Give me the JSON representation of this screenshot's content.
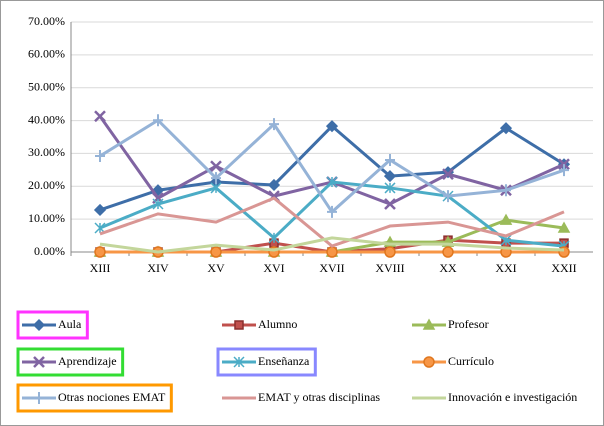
{
  "chart_data": {
    "type": "line",
    "categories": [
      "XIII",
      "XIV",
      "XV",
      "XVI",
      "XVII",
      "XVIII",
      "XX",
      "XXI",
      "XXII"
    ],
    "ylim": [
      0,
      70
    ],
    "yticks": [
      {
        "value": 0,
        "label": "0.00%"
      },
      {
        "value": 10,
        "label": "10.00%"
      },
      {
        "value": 20,
        "label": "20.00%"
      },
      {
        "value": 30,
        "label": "30.00%"
      },
      {
        "value": 40,
        "label": "40.00%"
      },
      {
        "value": 50,
        "label": "50.00%"
      },
      {
        "value": 60,
        "label": "60.00%"
      },
      {
        "value": 70,
        "label": "70.00%"
      }
    ],
    "grid": true,
    "legend": "bottom",
    "series": [
      {
        "name": "Aula",
        "color": "#3e6ea8",
        "marker": "diamond",
        "highlight": "#ff33ff",
        "values": [
          12.8,
          18.8,
          21.3,
          20.4,
          38.3,
          23.1,
          24.3,
          37.7,
          26.7
        ]
      },
      {
        "name": "Alumno",
        "color": "#c0504d",
        "marker": "square",
        "values": [
          0,
          0,
          0,
          2.7,
          0,
          1,
          3.6,
          2.7,
          2.7
        ]
      },
      {
        "name": "Profesor",
        "color": "#9bbb59",
        "marker": "triangle",
        "values": [
          0,
          0,
          0,
          0,
          0,
          3,
          3,
          9.7,
          7.3
        ]
      },
      {
        "name": "Aprendizaje",
        "color": "#8064a2",
        "marker": "x",
        "highlight": "#33dd33",
        "values": [
          41.3,
          16.4,
          26.1,
          17,
          21.3,
          14.6,
          23.7,
          18.8,
          26.7
        ]
      },
      {
        "name": "Enseñanza",
        "color": "#4bacc6",
        "marker": "asterisk",
        "highlight": "#8888ff",
        "values": [
          7.3,
          14.6,
          19.5,
          4.3,
          21.3,
          19.5,
          17,
          3.6,
          1.8
        ]
      },
      {
        "name": "Currículo",
        "color": "#f79646",
        "marker": "circle",
        "values": [
          0,
          0,
          0,
          0,
          0,
          0,
          0,
          0,
          0
        ]
      },
      {
        "name": "Otras nociones EMAT",
        "color": "#95b3d7",
        "marker": "plus",
        "highlight": "#ff9900",
        "values": [
          29.2,
          40.1,
          22.5,
          38.9,
          12.2,
          28,
          17,
          18.8,
          24.9
        ]
      },
      {
        "name": "EMAT y otras disciplinas",
        "color": "#d99694",
        "marker": "none",
        "values": [
          5.5,
          11.6,
          9.1,
          16.4,
          1.8,
          7.9,
          9.1,
          4.9,
          12.2
        ]
      },
      {
        "name": "Innovación e investigación",
        "color": "#c3d69b",
        "marker": "none",
        "values": [
          2.4,
          0,
          2.1,
          0.6,
          4.3,
          2.4,
          2.4,
          1.2,
          0.6
        ]
      }
    ]
  }
}
